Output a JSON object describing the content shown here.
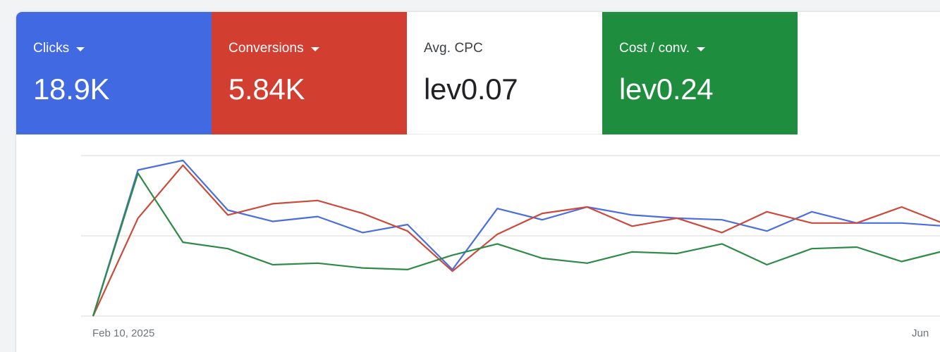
{
  "scorecards": [
    {
      "label": "Clicks",
      "value": "18.9K",
      "color": "#4169e1",
      "has_dropdown": true,
      "selected": true
    },
    {
      "label": "Conversions",
      "value": "5.84K",
      "color": "#d23f31",
      "has_dropdown": true,
      "selected": true
    },
    {
      "label": "Avg. CPC",
      "value": "lev0.07",
      "color": "#ffffff",
      "has_dropdown": false,
      "selected": false
    },
    {
      "label": "Cost / conv.",
      "value": "lev0.24",
      "color": "#1e8e3e",
      "has_dropdown": true,
      "selected": true
    }
  ],
  "chart_data": {
    "type": "line",
    "title": "",
    "xlabel": "",
    "ylabel": "",
    "x_tick_labels": [
      "Feb 10, 2025",
      "Jun"
    ],
    "y_scale": "normalized 0-100 (no y-axis labels shown)",
    "ylim": [
      0,
      100
    ],
    "grid": true,
    "gridlines_y": [
      0,
      50,
      100
    ],
    "legend": "none (series identified by scorecard colors)",
    "point_count": 20,
    "series": [
      {
        "name": "Clicks",
        "color": "#4a6ee0",
        "values": [
          0,
          91,
          97,
          66,
          59,
          62,
          52,
          57,
          29,
          67,
          60,
          68,
          63,
          61,
          60,
          53,
          65,
          58,
          58,
          56
        ]
      },
      {
        "name": "Conversions",
        "color": "#cc4a3c",
        "values": [
          0,
          61,
          94,
          63,
          70,
          72,
          64,
          53,
          28,
          51,
          64,
          68,
          56,
          61,
          52,
          65,
          58,
          58,
          68,
          57
        ]
      },
      {
        "name": "Cost / conv.",
        "color": "#2e8b47",
        "values": [
          0,
          89,
          46,
          42,
          32,
          33,
          30,
          29,
          38,
          45,
          36,
          33,
          40,
          39,
          45,
          32,
          42,
          43,
          34,
          41
        ]
      }
    ]
  }
}
